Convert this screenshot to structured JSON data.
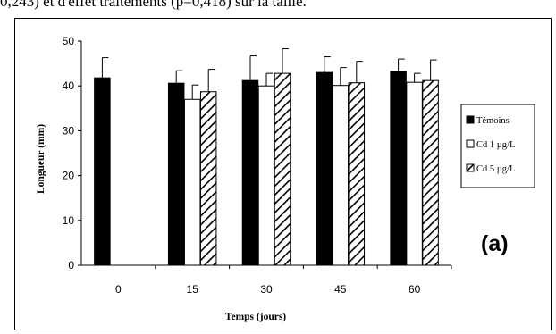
{
  "caption_fragment": "0,243) et d'effet traitements (p=0,418) sur la taille.",
  "panel_label": "(a)",
  "chart_data": {
    "type": "bar",
    "xlabel": "Temps (jours)",
    "ylabel": "Longueur (mm)",
    "ylim": [
      0,
      50
    ],
    "yticks": [
      0,
      10,
      20,
      30,
      40,
      50
    ],
    "categories": [
      "0",
      "15",
      "30",
      "45",
      "60"
    ],
    "legend_position": "right",
    "series": [
      {
        "name": "Témoins",
        "pattern": "solid",
        "values": [
          41.8,
          40.6,
          41.2,
          43.0,
          43.2
        ],
        "errors": [
          4.5,
          2.8,
          5.5,
          3.5,
          2.8
        ]
      },
      {
        "name": "Cd 1 µg/L",
        "pattern": "open",
        "values": [
          null,
          37.0,
          40.0,
          40.1,
          40.8
        ],
        "errors": [
          null,
          3.2,
          2.8,
          4.0,
          2.0
        ]
      },
      {
        "name": "Cd 5 µg/L",
        "pattern": "hatched",
        "values": [
          null,
          38.7,
          42.8,
          40.7,
          41.2
        ],
        "errors": [
          null,
          5.0,
          5.5,
          4.8,
          4.6
        ]
      }
    ]
  }
}
